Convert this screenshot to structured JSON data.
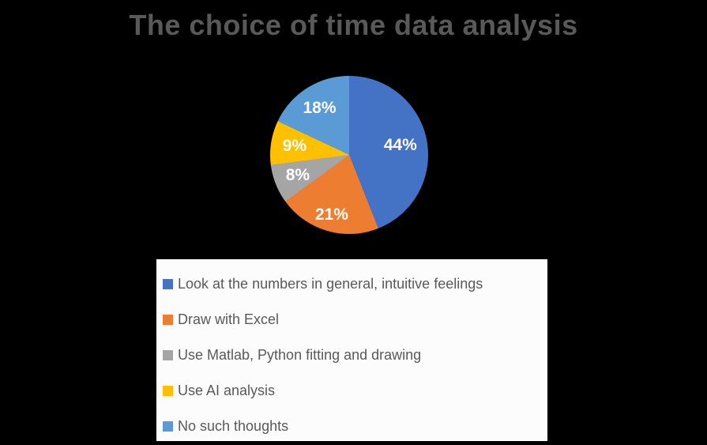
{
  "page": {
    "background": "#000000"
  },
  "chart_data": {
    "type": "pie",
    "title": "The choice of time data analysis",
    "labels": [
      "Look at the numbers in general, intuitive feelings",
      "Draw with Excel",
      "Use Matlab, Python fitting and drawing",
      "Use AI analysis",
      "No such thoughts"
    ],
    "values": [
      44,
      21,
      8,
      9,
      18
    ],
    "data_labels": [
      "44%",
      "21%",
      "8%",
      "9%",
      "18%"
    ],
    "colors": [
      "#4472C4",
      "#ED7D31",
      "#A5A5A5",
      "#FFC000",
      "#5B9BD5"
    ],
    "start_angle_deg": 0,
    "direction": "clockwise",
    "legend_position": "bottom",
    "legend_background": "#FCFCFC",
    "title_color": "#595959",
    "legend_text_color": "#595959",
    "data_label_color": "#FFFFFF",
    "label_radius_frac": [
      0.66,
      0.79,
      0.7,
      0.7,
      0.7
    ]
  }
}
